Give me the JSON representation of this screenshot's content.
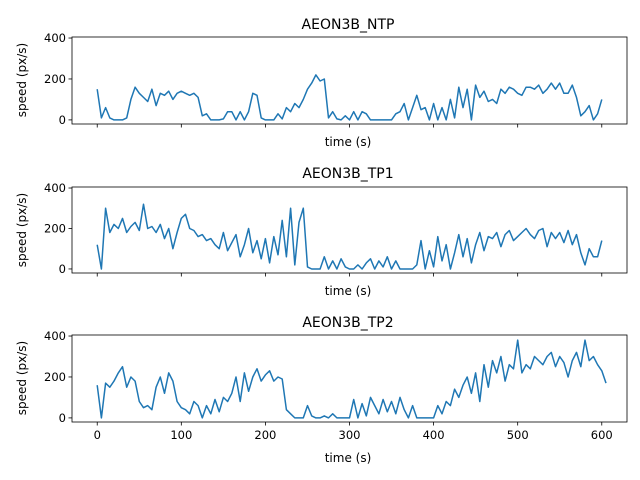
{
  "chart_data": [
    {
      "type": "line",
      "title": "AEON3B_NTP",
      "xlabel": "time (s)",
      "ylabel": "speed (px/s)",
      "xlim": [
        -30,
        630
      ],
      "ylim": [
        -20,
        405
      ],
      "xticks": [
        0,
        100,
        200,
        300,
        400,
        500,
        600
      ],
      "yticks": [
        0,
        200,
        400
      ],
      "show_xtick_labels": false,
      "grid": false,
      "color": "#1f77b4",
      "x_start": 0,
      "x_step": 5,
      "values": [
        150,
        10,
        60,
        10,
        0,
        0,
        0,
        10,
        100,
        160,
        130,
        110,
        90,
        150,
        70,
        130,
        120,
        140,
        100,
        130,
        140,
        130,
        120,
        130,
        110,
        20,
        30,
        0,
        0,
        0,
        5,
        40,
        40,
        0,
        40,
        0,
        40,
        130,
        120,
        10,
        0,
        0,
        0,
        30,
        5,
        60,
        40,
        80,
        60,
        100,
        150,
        180,
        220,
        190,
        200,
        10,
        40,
        5,
        0,
        20,
        0,
        40,
        0,
        40,
        30,
        0,
        0,
        0,
        0,
        0,
        0,
        30,
        40,
        80,
        0,
        60,
        120,
        50,
        60,
        0,
        80,
        0,
        60,
        0,
        100,
        10,
        160,
        60,
        150,
        0,
        170,
        110,
        140,
        90,
        100,
        80,
        150,
        130,
        160,
        150,
        130,
        120,
        160,
        160,
        150,
        170,
        130,
        150,
        180,
        150,
        180,
        130,
        130,
        170,
        110,
        20,
        40,
        70,
        0,
        30,
        100
      ]
    },
    {
      "type": "line",
      "title": "AEON3B_TP1",
      "xlabel": "time (s)",
      "ylabel": "speed (px/s)",
      "xlim": [
        -30,
        630
      ],
      "ylim": [
        -20,
        405
      ],
      "xticks": [
        0,
        100,
        200,
        300,
        400,
        500,
        600
      ],
      "yticks": [
        0,
        200,
        400
      ],
      "show_xtick_labels": false,
      "grid": false,
      "color": "#1f77b4",
      "x_start": 0,
      "x_step": 5,
      "values": [
        120,
        0,
        300,
        180,
        220,
        200,
        250,
        180,
        210,
        230,
        190,
        320,
        200,
        210,
        180,
        220,
        150,
        200,
        100,
        180,
        250,
        270,
        200,
        190,
        160,
        170,
        140,
        150,
        120,
        100,
        180,
        90,
        130,
        170,
        60,
        120,
        200,
        80,
        140,
        50,
        150,
        30,
        160,
        70,
        240,
        60,
        300,
        20,
        230,
        300,
        10,
        0,
        0,
        0,
        60,
        0,
        40,
        0,
        50,
        10,
        0,
        0,
        20,
        0,
        30,
        50,
        0,
        40,
        10,
        60,
        0,
        40,
        0,
        0,
        0,
        0,
        20,
        140,
        0,
        90,
        10,
        160,
        40,
        120,
        0,
        80,
        170,
        60,
        150,
        30,
        120,
        180,
        90,
        160,
        150,
        180,
        110,
        170,
        190,
        140,
        160,
        180,
        200,
        170,
        150,
        190,
        200,
        110,
        180,
        150,
        180,
        130,
        190,
        120,
        170,
        80,
        20,
        100,
        60,
        60,
        140
      ]
    },
    {
      "type": "line",
      "title": "AEON3B_TP2",
      "xlabel": "time (s)",
      "ylabel": "speed (px/s)",
      "xlim": [
        -30,
        630
      ],
      "ylim": [
        -20,
        405
      ],
      "xticks": [
        0,
        100,
        200,
        300,
        400,
        500,
        600
      ],
      "yticks": [
        0,
        200,
        400
      ],
      "show_xtick_labels": true,
      "grid": false,
      "color": "#1f77b4",
      "x_start": 0,
      "x_step": 5,
      "values": [
        160,
        0,
        170,
        150,
        180,
        220,
        250,
        150,
        200,
        180,
        80,
        50,
        60,
        40,
        150,
        200,
        120,
        220,
        180,
        80,
        50,
        40,
        20,
        80,
        60,
        0,
        60,
        20,
        90,
        30,
        100,
        80,
        120,
        200,
        80,
        220,
        130,
        200,
        240,
        180,
        210,
        230,
        180,
        200,
        190,
        40,
        20,
        0,
        0,
        0,
        60,
        10,
        0,
        0,
        10,
        0,
        20,
        0,
        0,
        0,
        0,
        90,
        0,
        70,
        10,
        100,
        60,
        20,
        90,
        30,
        80,
        20,
        100,
        40,
        0,
        60,
        0,
        0,
        0,
        0,
        0,
        60,
        20,
        80,
        60,
        140,
        100,
        160,
        200,
        120,
        220,
        80,
        260,
        150,
        280,
        220,
        300,
        180,
        260,
        240,
        380,
        220,
        260,
        240,
        300,
        280,
        260,
        300,
        320,
        250,
        300,
        270,
        200,
        280,
        320,
        250,
        380,
        280,
        300,
        260,
        230,
        170
      ]
    }
  ]
}
